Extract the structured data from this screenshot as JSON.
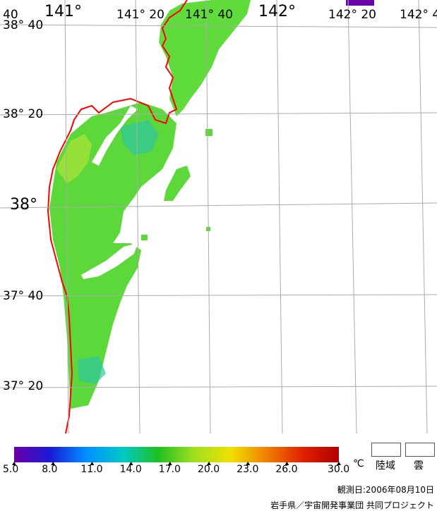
{
  "map": {
    "lon_labels_large": [
      "141°",
      "142°"
    ],
    "lon_labels_small": [
      "141° 20",
      "141° 40",
      "142° 20",
      "142° 4"
    ],
    "lat_labels": [
      "38° 40",
      "38° 20",
      "38°",
      "37° 40",
      "37° 20"
    ],
    "corner_label": "40"
  },
  "colorbar": {
    "min": 5.0,
    "max": 30.0,
    "tick_labels": [
      "5.0",
      "8.0",
      "11.0",
      "14.0",
      "17.0",
      "20.0",
      "23.0",
      "26.0",
      "30.0"
    ],
    "unit": "℃",
    "colors": [
      "#6a00a8",
      "#1a1ad8",
      "#0090ff",
      "#00c8c8",
      "#20c020",
      "#a0e020",
      "#f0e000",
      "#f08000",
      "#e02000",
      "#b00000"
    ]
  },
  "legend": {
    "land_label": "陸域",
    "cloud_label": "雲"
  },
  "footer": {
    "obs_date": "観測日:2006年08月10日",
    "credit": "岩手県／宇宙開発事業団 共同プロジェクト"
  },
  "colors": {
    "coastline": "#ff0000",
    "grid": "#aaaaaa",
    "land": "#ffffff"
  }
}
